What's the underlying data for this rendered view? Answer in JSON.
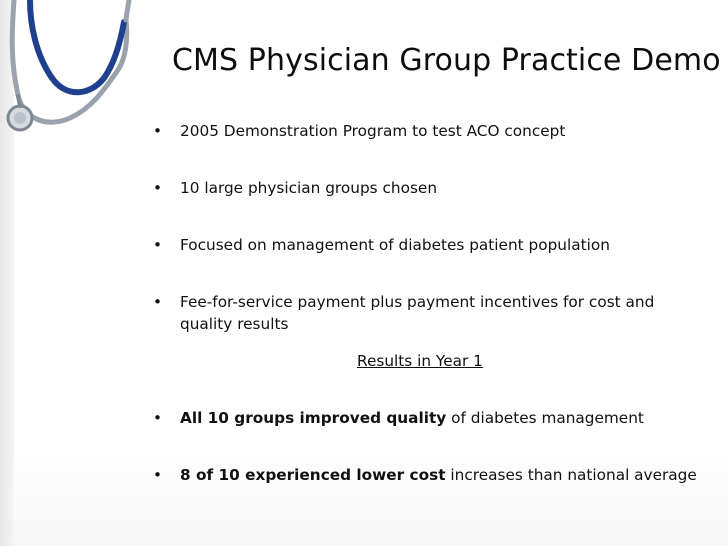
{
  "slide": {
    "title": "CMS Physician Group Practice Demo",
    "bullet_char": "•",
    "bullets": [
      {
        "text": "2005 Demonstration Program to test ACO concept"
      },
      {
        "text": "10 large physician groups chosen"
      },
      {
        "text": "Focused on management of diabetes patient population"
      },
      {
        "text": "Fee-for-service payment plus payment incentives for cost and quality results"
      }
    ],
    "results_heading": "Results in Year 1",
    "results": [
      {
        "bold": "All 10 groups improved quality",
        "rest": " of diabetes management"
      },
      {
        "bold": "8 of 10 experienced lower cost",
        "rest": " increases than national average"
      }
    ]
  },
  "colors": {
    "stethoscope_blue": "#1f3f8f",
    "stethoscope_gray": "#9aa3ad",
    "text": "#111111"
  },
  "icons": {
    "decoration": "stethoscope-icon"
  }
}
